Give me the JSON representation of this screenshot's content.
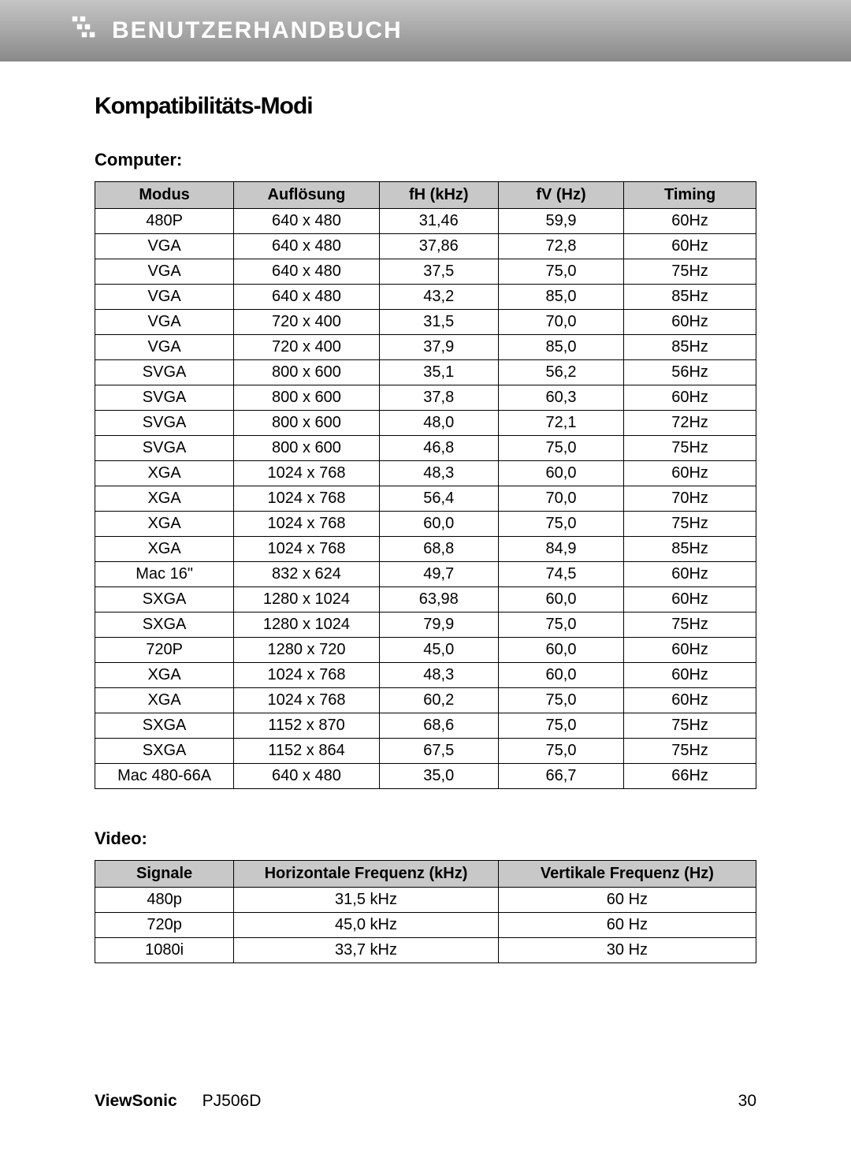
{
  "header": {
    "title": "BENUTZERHANDBUCH",
    "icon_color": "#ffffff"
  },
  "main_title": "Kompatibilitäts-Modi",
  "computer_section": {
    "title": "Computer:",
    "header_bg": "#c8c8c8",
    "columns": [
      "Modus",
      "Auflösung",
      "fH (kHz)",
      "fV (Hz)",
      "Timing"
    ],
    "rows": [
      [
        "480P",
        "640 x 480",
        "31,46",
        "59,9",
        "60Hz"
      ],
      [
        "VGA",
        "640 x 480",
        "37,86",
        "72,8",
        "60Hz"
      ],
      [
        "VGA",
        "640 x 480",
        "37,5",
        "75,0",
        "75Hz"
      ],
      [
        "VGA",
        "640 x 480",
        "43,2",
        "85,0",
        "85Hz"
      ],
      [
        "VGA",
        "720 x 400",
        "31,5",
        "70,0",
        "60Hz"
      ],
      [
        "VGA",
        "720 x 400",
        "37,9",
        "85,0",
        "85Hz"
      ],
      [
        "SVGA",
        "800 x 600",
        "35,1",
        "56,2",
        "56Hz"
      ],
      [
        "SVGA",
        "800 x 600",
        "37,8",
        "60,3",
        "60Hz"
      ],
      [
        "SVGA",
        "800 x 600",
        "48,0",
        "72,1",
        "72Hz"
      ],
      [
        "SVGA",
        "800 x 600",
        "46,8",
        "75,0",
        "75Hz"
      ],
      [
        "XGA",
        "1024 x 768",
        "48,3",
        "60,0",
        "60Hz"
      ],
      [
        "XGA",
        "1024 x 768",
        "56,4",
        "70,0",
        "70Hz"
      ],
      [
        "XGA",
        "1024 x 768",
        "60,0",
        "75,0",
        "75Hz"
      ],
      [
        "XGA",
        "1024 x 768",
        "68,8",
        "84,9",
        "85Hz"
      ],
      [
        "Mac 16\"",
        "832 x 624",
        "49,7",
        "74,5",
        "60Hz"
      ],
      [
        "SXGA",
        "1280 x 1024",
        "63,98",
        "60,0",
        "60Hz"
      ],
      [
        "SXGA",
        "1280 x 1024",
        "79,9",
        "75,0",
        "75Hz"
      ],
      [
        "720P",
        "1280 x 720",
        "45,0",
        "60,0",
        "60Hz"
      ],
      [
        "XGA",
        "1024 x 768",
        "48,3",
        "60,0",
        "60Hz"
      ],
      [
        "XGA",
        "1024 x 768",
        "60,2",
        "75,0",
        "60Hz"
      ],
      [
        "SXGA",
        "1152 x 870",
        "68,6",
        "75,0",
        "75Hz"
      ],
      [
        "SXGA",
        "1152 x 864",
        "67,5",
        "75,0",
        "75Hz"
      ],
      [
        "Mac 480-66A",
        "640 x 480",
        "35,0",
        "66,7",
        "66Hz"
      ]
    ]
  },
  "video_section": {
    "title": "Video:",
    "header_bg": "#c8c8c8",
    "columns": [
      "Signale",
      "Horizontale Frequenz (kHz)",
      "Vertikale Frequenz (Hz)"
    ],
    "rows": [
      [
        "480p",
        "31,5 kHz",
        "60 Hz"
      ],
      [
        "720p",
        "45,0 kHz",
        "60 Hz"
      ],
      [
        "1080i",
        "33,7 kHz",
        "30 Hz"
      ]
    ]
  },
  "footer": {
    "brand": "ViewSonic",
    "model": "PJ506D",
    "page": "30"
  }
}
